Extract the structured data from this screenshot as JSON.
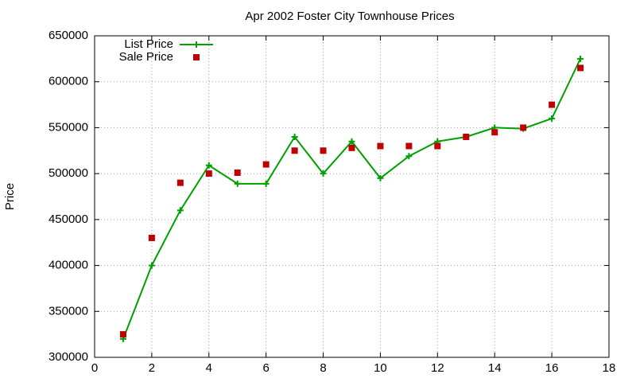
{
  "chart_data": {
    "type": "line",
    "title": "Apr 2002 Foster City Townhouse Prices",
    "y_label": "Price",
    "x": [
      1,
      2,
      3,
      4,
      5,
      6,
      7,
      8,
      9,
      10,
      11,
      12,
      13,
      14,
      15,
      16,
      17
    ],
    "series": [
      {
        "name": "List Price",
        "color": "#00a000",
        "style": "linespoints",
        "values": [
          320000,
          400000,
          460000,
          509000,
          489000,
          489000,
          540000,
          500000,
          535000,
          495000,
          519000,
          535000,
          540000,
          550000,
          549000,
          560000,
          625000
        ]
      },
      {
        "name": "Sale Price",
        "color": "#c00000",
        "style": "points",
        "values": [
          325000,
          430000,
          490000,
          500000,
          501000,
          510000,
          525000,
          525000,
          528000,
          530000,
          530000,
          530000,
          540000,
          545000,
          550000,
          575000,
          615000
        ]
      }
    ],
    "xlim": [
      0,
      18
    ],
    "xticks": [
      0,
      2,
      4,
      6,
      8,
      10,
      12,
      14,
      16,
      18
    ],
    "ylim": [
      300000,
      650000
    ],
    "yticks": [
      300000,
      350000,
      400000,
      450000,
      500000,
      550000,
      600000,
      650000
    ],
    "grid": true,
    "legend": "top-left"
  }
}
